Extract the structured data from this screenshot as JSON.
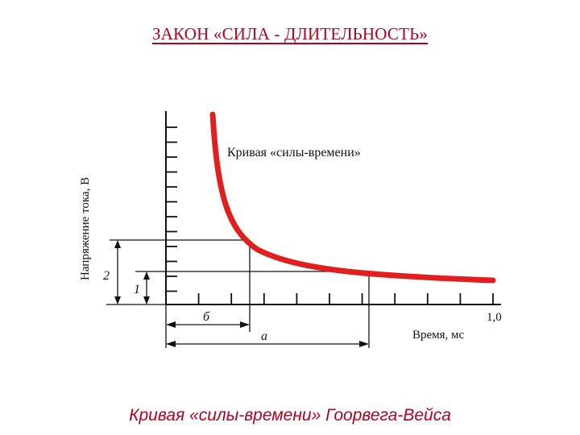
{
  "title": "ЗАКОН «СИЛА - ДЛИТЕЛЬНОСТЬ»",
  "caption": "Кривая «силы-времени» Гоорвега-Вейса",
  "diagram": {
    "curve_label": "Кривая «силы-времени»",
    "ylabel": "Напряжение тока, В",
    "xlabel": "Время, мс",
    "x_tick_label": "1,0",
    "marker_2": "2",
    "marker_1": "1",
    "marker_b": "б",
    "marker_a": "а",
    "curve_color": "#e0201e"
  }
}
